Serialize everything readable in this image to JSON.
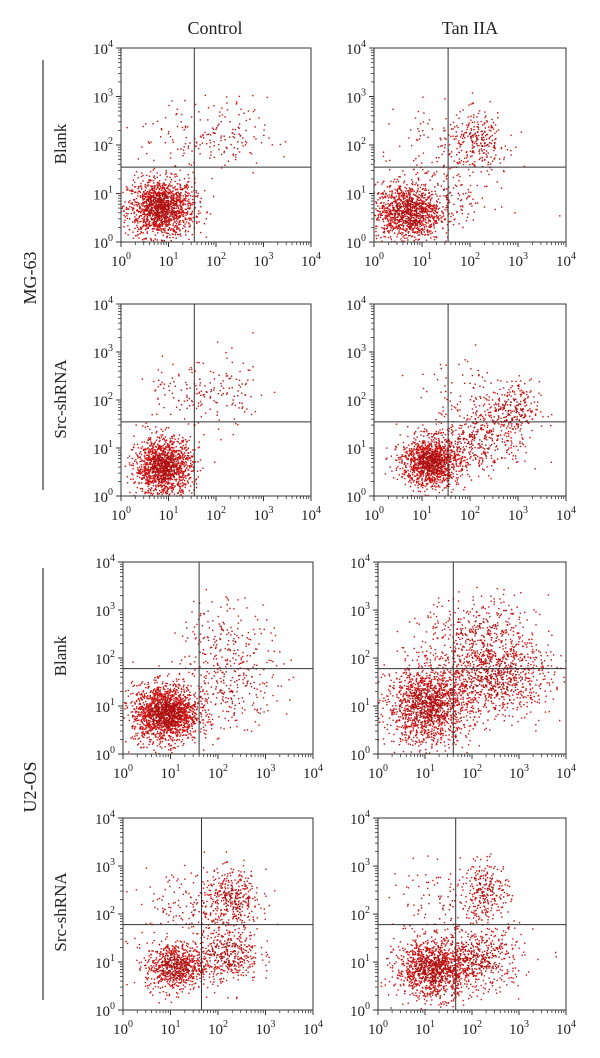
{
  "column_headers": [
    "Control",
    "Tan IIA"
  ],
  "cell_lines": [
    "MG-63",
    "U2-OS"
  ],
  "row_labels": [
    "Blank",
    "Src-shRNA",
    "Blank",
    "Src-shRNA"
  ],
  "tick_base": "10",
  "tick_exponents": [
    "0",
    "1",
    "2",
    "3",
    "4"
  ],
  "colors": {
    "dots": "#cc1111",
    "dense": "#b01010",
    "axis": "#333333",
    "gate": "#333333"
  },
  "chart_data": [
    {
      "type": "scatter",
      "cell_line": "MG-63",
      "row": "Blank",
      "column": "Control",
      "xlim": [
        1,
        10000
      ],
      "ylim": [
        1,
        10000
      ],
      "x_scale": "log",
      "y_scale": "log",
      "quadrant_gate": {
        "x": 35,
        "y": 35
      },
      "clusters": [
        {
          "center": [
            7,
            5
          ],
          "spread": [
            0.35,
            0.3
          ],
          "points": 1500
        },
        {
          "center": [
            150,
            150
          ],
          "spread": [
            0.45,
            0.4
          ],
          "points": 130
        },
        {
          "center": [
            15,
            150
          ],
          "spread": [
            0.4,
            0.35
          ],
          "points": 60
        }
      ]
    },
    {
      "type": "scatter",
      "cell_line": "MG-63",
      "row": "Blank",
      "column": "Tan IIA",
      "xlim": [
        1,
        10000
      ],
      "ylim": [
        1,
        10000
      ],
      "x_scale": "log",
      "y_scale": "log",
      "quadrant_gate": {
        "x": 35,
        "y": 35
      },
      "clusters": [
        {
          "center": [
            5,
            4
          ],
          "spread": [
            0.35,
            0.3
          ],
          "points": 1100
        },
        {
          "center": [
            150,
            120
          ],
          "spread": [
            0.3,
            0.3
          ],
          "points": 260
        },
        {
          "center": [
            20,
            8
          ],
          "spread": [
            0.6,
            0.4
          ],
          "points": 250
        },
        {
          "center": [
            20,
            150
          ],
          "spread": [
            0.4,
            0.35
          ],
          "points": 60
        }
      ]
    },
    {
      "type": "scatter",
      "cell_line": "MG-63",
      "row": "Src-shRNA",
      "column": "Control",
      "xlim": [
        1,
        10000
      ],
      "ylim": [
        1,
        10000
      ],
      "x_scale": "log",
      "y_scale": "log",
      "quadrant_gate": {
        "x": 35,
        "y": 35
      },
      "clusters": [
        {
          "center": [
            8,
            4
          ],
          "spread": [
            0.3,
            0.3
          ],
          "points": 1400
        },
        {
          "center": [
            150,
            120
          ],
          "spread": [
            0.5,
            0.4
          ],
          "points": 110
        },
        {
          "center": [
            15,
            120
          ],
          "spread": [
            0.4,
            0.35
          ],
          "points": 70
        }
      ]
    },
    {
      "type": "scatter",
      "cell_line": "MG-63",
      "row": "Src-shRNA",
      "column": "Tan IIA",
      "xlim": [
        1,
        10000
      ],
      "ylim": [
        1,
        10000
      ],
      "x_scale": "log",
      "y_scale": "log",
      "quadrant_gate": {
        "x": 35,
        "y": 35
      },
      "clusters": [
        {
          "center": [
            15,
            5
          ],
          "spread": [
            0.3,
            0.25
          ],
          "points": 1300
        },
        {
          "center": [
            150,
            15
          ],
          "spread": [
            0.5,
            0.35
          ],
          "points": 400
        },
        {
          "center": [
            700,
            60
          ],
          "spread": [
            0.3,
            0.3
          ],
          "points": 260
        },
        {
          "center": [
            80,
            200
          ],
          "spread": [
            0.5,
            0.4
          ],
          "points": 60
        }
      ]
    },
    {
      "type": "scatter",
      "cell_line": "U2-OS",
      "row": "Blank",
      "column": "Control",
      "xlim": [
        1,
        10000
      ],
      "ylim": [
        1,
        10000
      ],
      "x_scale": "log",
      "y_scale": "log",
      "quadrant_gate": {
        "x": 40,
        "y": 60
      },
      "clusters": [
        {
          "center": [
            8,
            7
          ],
          "spread": [
            0.35,
            0.3
          ],
          "points": 1800
        },
        {
          "center": [
            200,
            25
          ],
          "spread": [
            0.5,
            0.4
          ],
          "points": 250
        },
        {
          "center": [
            150,
            300
          ],
          "spread": [
            0.5,
            0.4
          ],
          "points": 150
        }
      ]
    },
    {
      "type": "scatter",
      "cell_line": "U2-OS",
      "row": "Blank",
      "column": "Tan IIA",
      "xlim": [
        1,
        10000
      ],
      "ylim": [
        1,
        10000
      ],
      "x_scale": "log",
      "y_scale": "log",
      "quadrant_gate": {
        "x": 40,
        "y": 60
      },
      "clusters": [
        {
          "center": [
            12,
            10
          ],
          "spread": [
            0.45,
            0.4
          ],
          "points": 1500
        },
        {
          "center": [
            300,
            40
          ],
          "spread": [
            0.6,
            0.4
          ],
          "points": 900
        },
        {
          "center": [
            150,
            300
          ],
          "spread": [
            0.6,
            0.4
          ],
          "points": 400
        }
      ]
    },
    {
      "type": "scatter",
      "cell_line": "U2-OS",
      "row": "Src-shRNA",
      "column": "Control",
      "xlim": [
        1,
        10000
      ],
      "ylim": [
        1,
        10000
      ],
      "x_scale": "log",
      "y_scale": "log",
      "quadrant_gate": {
        "x": 45,
        "y": 60
      },
      "clusters": [
        {
          "center": [
            12,
            8
          ],
          "spread": [
            0.3,
            0.25
          ],
          "points": 750
        },
        {
          "center": [
            150,
            15
          ],
          "spread": [
            0.35,
            0.3
          ],
          "points": 450
        },
        {
          "center": [
            200,
            200
          ],
          "spread": [
            0.3,
            0.3
          ],
          "points": 380
        },
        {
          "center": [
            20,
            150
          ],
          "spread": [
            0.5,
            0.4
          ],
          "points": 130
        }
      ]
    },
    {
      "type": "scatter",
      "cell_line": "U2-OS",
      "row": "Src-shRNA",
      "column": "Tan IIA",
      "xlim": [
        1,
        10000
      ],
      "ylim": [
        1,
        10000
      ],
      "x_scale": "log",
      "y_scale": "log",
      "quadrant_gate": {
        "x": 45,
        "y": 60
      },
      "clusters": [
        {
          "center": [
            15,
            7
          ],
          "spread": [
            0.4,
            0.3
          ],
          "points": 1200
        },
        {
          "center": [
            150,
            12
          ],
          "spread": [
            0.45,
            0.35
          ],
          "points": 500
        },
        {
          "center": [
            200,
            300
          ],
          "spread": [
            0.25,
            0.3
          ],
          "points": 260
        },
        {
          "center": [
            20,
            150
          ],
          "spread": [
            0.5,
            0.4
          ],
          "points": 100
        }
      ]
    }
  ]
}
